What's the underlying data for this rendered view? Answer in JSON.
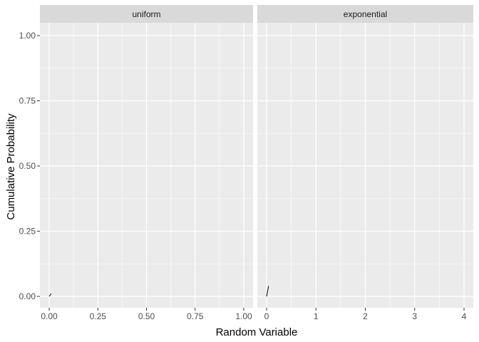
{
  "chart_data": {
    "type": "line",
    "xlabel": "Random Variable",
    "ylabel": "Cumulative Probability",
    "ylim": [
      0,
      1
    ],
    "y_ticks": [
      "0.00",
      "0.25",
      "0.50",
      "0.75",
      "1.00"
    ],
    "y_tick_values": [
      0,
      0.25,
      0.5,
      0.75,
      1.0
    ],
    "grid": true,
    "facets": [
      {
        "label": "uniform",
        "xlim": [
          0,
          1
        ],
        "x_ticks": [
          "0.00",
          "0.25",
          "0.50",
          "0.75",
          "1.00"
        ],
        "x_tick_values": [
          0,
          0.25,
          0.5,
          0.75,
          1.0
        ],
        "series": [
          {
            "x": [
              0.0,
              0.01
            ],
            "y": [
              0.0,
              0.01
            ]
          }
        ]
      },
      {
        "label": "exponential",
        "xlim": [
          0,
          4
        ],
        "x_ticks": [
          "0",
          "1",
          "2",
          "3",
          "4"
        ],
        "x_tick_values": [
          0,
          1,
          2,
          3,
          4
        ],
        "series": [
          {
            "x": [
              0.0,
              0.04
            ],
            "y": [
              0.0,
              0.04
            ]
          }
        ]
      }
    ],
    "colors": {
      "panel_background": "#ebebeb",
      "strip_background": "#d9d9d9",
      "grid_line": "#ffffff",
      "series_line": "#000000"
    }
  }
}
